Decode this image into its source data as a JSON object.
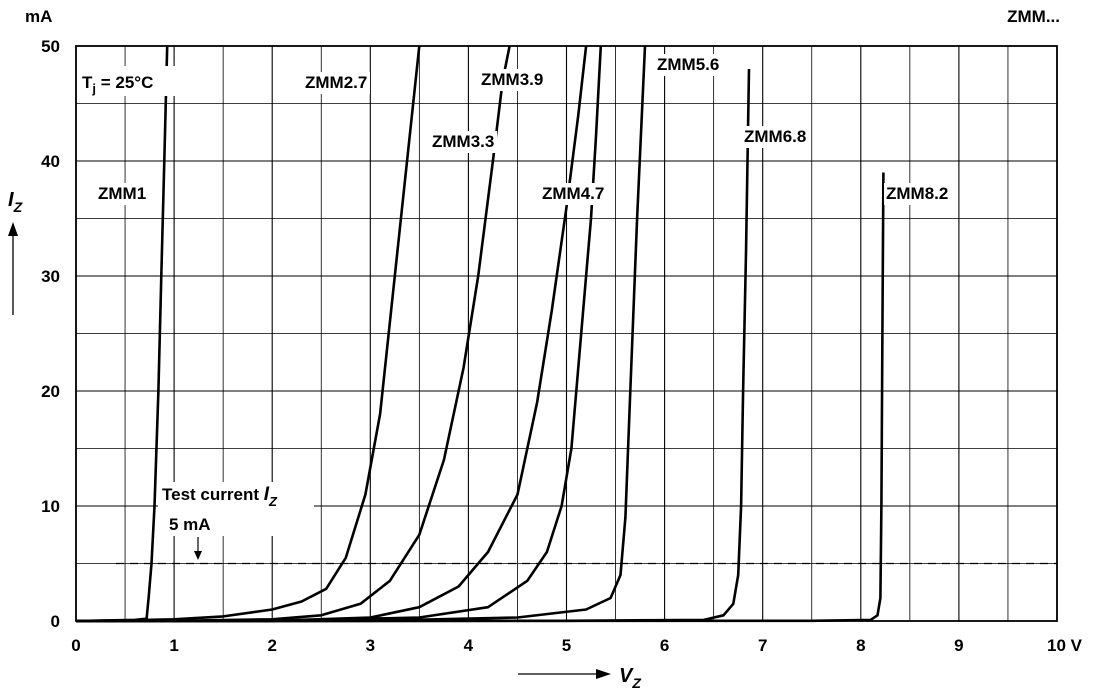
{
  "chart_data": {
    "type": "line",
    "title": "ZMM...",
    "y_unit": "mA",
    "x_unit": "V",
    "xlabel": "V",
    "xlabel_sub": "Z",
    "ylabel": "I",
    "ylabel_sub": "Z",
    "xlim": [
      0,
      10
    ],
    "ylim": [
      0,
      50
    ],
    "x_ticks": [
      "0",
      "1",
      "2",
      "3",
      "4",
      "5",
      "6",
      "7",
      "8",
      "9",
      "10 V"
    ],
    "y_ticks": [
      "0",
      "10",
      "20",
      "30",
      "40",
      "50"
    ],
    "grid": true,
    "condition": {
      "prefix": "T",
      "sub": "j",
      "suffix": " = 25°C"
    },
    "test_current": {
      "line1": "Test current ",
      "symbol": "I",
      "symbol_sub": "Z",
      "line2": "5 mA",
      "value": 5
    },
    "series": [
      {
        "name": "ZMM1",
        "points": [
          [
            0,
            0
          ],
          [
            0.3,
            0.05
          ],
          [
            0.6,
            0.1
          ],
          [
            0.72,
            0.2
          ],
          [
            0.74,
            2
          ],
          [
            0.77,
            5
          ],
          [
            0.8,
            10
          ],
          [
            0.84,
            20
          ],
          [
            0.87,
            30
          ],
          [
            0.9,
            40
          ],
          [
            0.93,
            50
          ]
        ]
      },
      {
        "name": "ZMM2.7",
        "points": [
          [
            0,
            0
          ],
          [
            0.5,
            0.05
          ],
          [
            1.0,
            0.15
          ],
          [
            1.5,
            0.4
          ],
          [
            2.0,
            1.0
          ],
          [
            2.3,
            1.7
          ],
          [
            2.55,
            2.8
          ],
          [
            2.75,
            5.5
          ],
          [
            2.95,
            11
          ],
          [
            3.1,
            18
          ],
          [
            3.25,
            30
          ],
          [
            3.4,
            42
          ],
          [
            3.5,
            50
          ]
        ]
      },
      {
        "name": "ZMM3.3",
        "points": [
          [
            0,
            0
          ],
          [
            1.0,
            0.02
          ],
          [
            2.0,
            0.15
          ],
          [
            2.5,
            0.5
          ],
          [
            2.9,
            1.5
          ],
          [
            3.2,
            3.5
          ],
          [
            3.5,
            7.5
          ],
          [
            3.75,
            14
          ],
          [
            3.95,
            22
          ],
          [
            4.1,
            30
          ],
          [
            4.25,
            40
          ],
          [
            4.35,
            47
          ],
          [
            4.42,
            50
          ]
        ]
      },
      {
        "name": "ZMM3.9",
        "points": [
          [
            0,
            0
          ],
          [
            2.0,
            0.02
          ],
          [
            3.0,
            0.3
          ],
          [
            3.5,
            1.2
          ],
          [
            3.9,
            3
          ],
          [
            4.2,
            6
          ],
          [
            4.5,
            11
          ],
          [
            4.7,
            19
          ],
          [
            4.85,
            27
          ],
          [
            5.0,
            36
          ],
          [
            5.12,
            44
          ],
          [
            5.2,
            50
          ]
        ]
      },
      {
        "name": "ZMM4.7",
        "points": [
          [
            0,
            0
          ],
          [
            2.0,
            0.01
          ],
          [
            3.5,
            0.3
          ],
          [
            4.2,
            1.2
          ],
          [
            4.6,
            3.5
          ],
          [
            4.8,
            6
          ],
          [
            4.95,
            10
          ],
          [
            5.05,
            15
          ],
          [
            5.15,
            25
          ],
          [
            5.25,
            35
          ],
          [
            5.3,
            42
          ],
          [
            5.35,
            50
          ]
        ]
      },
      {
        "name": "ZMM5.6",
        "points": [
          [
            0,
            0
          ],
          [
            3.0,
            0.02
          ],
          [
            4.5,
            0.3
          ],
          [
            5.2,
            1
          ],
          [
            5.45,
            2
          ],
          [
            5.55,
            4
          ],
          [
            5.6,
            9
          ],
          [
            5.65,
            20
          ],
          [
            5.72,
            35
          ],
          [
            5.8,
            50
          ]
        ]
      },
      {
        "name": "ZMM6.8",
        "points": [
          [
            0,
            0
          ],
          [
            5.0,
            0.02
          ],
          [
            6.4,
            0.1
          ],
          [
            6.6,
            0.5
          ],
          [
            6.7,
            1.5
          ],
          [
            6.75,
            4
          ],
          [
            6.78,
            10
          ],
          [
            6.8,
            20
          ],
          [
            6.83,
            32
          ],
          [
            6.86,
            48
          ]
        ]
      },
      {
        "name": "ZMM8.2",
        "points": [
          [
            0,
            0
          ],
          [
            7.5,
            0.02
          ],
          [
            8.1,
            0.1
          ],
          [
            8.17,
            0.5
          ],
          [
            8.2,
            2
          ],
          [
            8.21,
            10
          ],
          [
            8.22,
            25
          ],
          [
            8.23,
            39
          ]
        ]
      }
    ]
  }
}
